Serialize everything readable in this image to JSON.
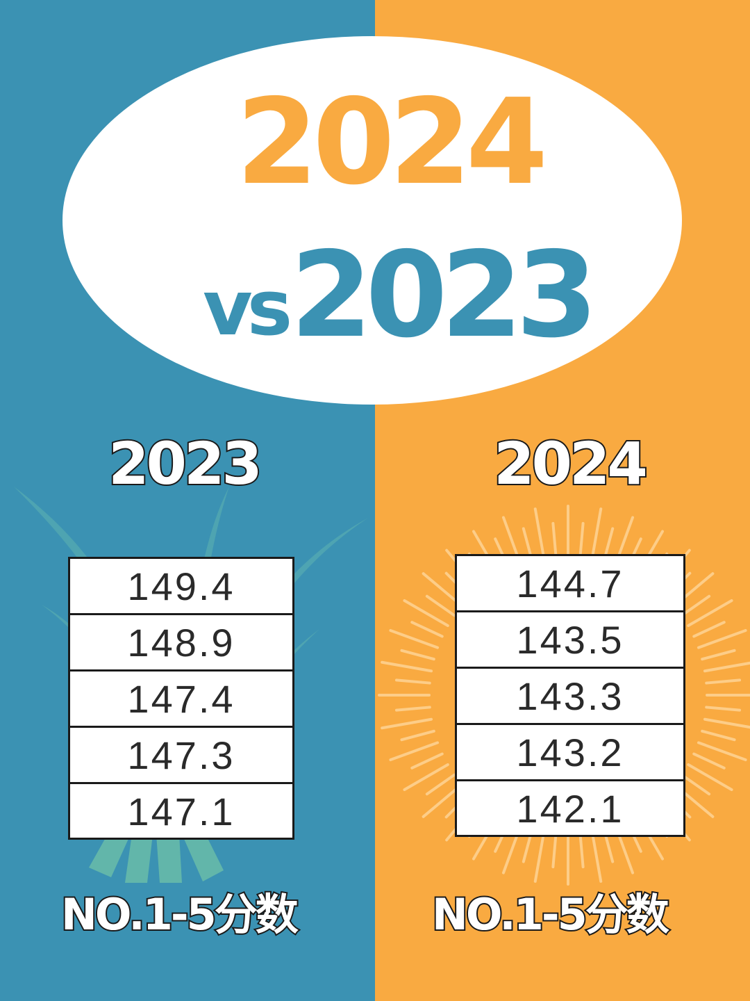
{
  "title": {
    "year_new": "2024",
    "vs": "vs",
    "year_old": "2023"
  },
  "colors": {
    "blue": "#3B92B3",
    "orange": "#F9AA41",
    "white": "#FFFFFF"
  },
  "left": {
    "year": "2023",
    "scores": [
      "149.4",
      "148.9",
      "147.4",
      "147.3",
      "147.1"
    ],
    "caption": "NO.1-5分数"
  },
  "right": {
    "year": "2024",
    "scores": [
      "144.7",
      "143.5",
      "143.3",
      "143.2",
      "142.1"
    ],
    "caption": "NO.1-5分数"
  }
}
